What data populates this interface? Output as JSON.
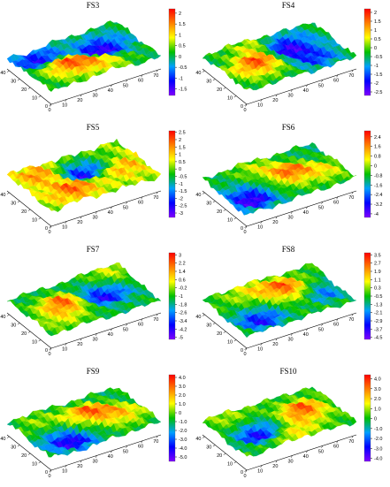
{
  "figure": {
    "panels": [
      {
        "title": "FS3",
        "colorbar_ticks": [
          "2",
          "1.5",
          "1",
          "0.5",
          "0",
          "-0.5",
          "-1",
          "-1.5"
        ],
        "cmax": 2.2,
        "cmin": -1.8
      },
      {
        "title": "FS4",
        "colorbar_ticks": [
          "2",
          "1.5",
          "1",
          "0.5",
          "0",
          "-0.5",
          "-1",
          "-1.5",
          "-2",
          "-2.5"
        ],
        "cmax": 2.2,
        "cmin": -2.7
      },
      {
        "title": "FS5",
        "colorbar_ticks": [
          "2.5",
          "2",
          "1.5",
          "1",
          "0.5",
          "0",
          "-0.5",
          "-1",
          "-1.5",
          "-2",
          "-2.5",
          "-3"
        ],
        "cmax": 2.6,
        "cmin": -3.3
      },
      {
        "title": "FS6",
        "colorbar_ticks": [
          "2.4",
          "1.6",
          "0.8",
          "0",
          "-0.8",
          "-1.6",
          "-2.4",
          "-3.2",
          "-4"
        ],
        "cmax": 2.9,
        "cmin": -4.3
      },
      {
        "title": "FS7",
        "colorbar_ticks": [
          "3",
          "2.2",
          "1.4",
          "0.6",
          "-0.2",
          "-1",
          "-1.8",
          "-2.6",
          "-3.4",
          "-4.2",
          "-5"
        ],
        "cmax": 3.2,
        "cmin": -5.2
      },
      {
        "title": "FS8",
        "colorbar_ticks": [
          "3.5",
          "2.7",
          "1.9",
          "1.1",
          "0.3",
          "-0.5",
          "-1.3",
          "-2.1",
          "-2.9",
          "-3.7",
          "-4.5"
        ],
        "cmax": 3.7,
        "cmin": -4.7
      },
      {
        "title": "FS9",
        "colorbar_ticks": [
          "4.0",
          "3.0",
          "2.0",
          "1.0",
          "0",
          "-1.0",
          "-2.0",
          "-3.0",
          "-4.0",
          "-5.0"
        ],
        "cmax": 4.3,
        "cmin": -5.5
      },
      {
        "title": "FS10",
        "colorbar_ticks": [
          "4.0",
          "3.0",
          "2.0",
          "1.0",
          "0",
          "-1.0",
          "-2.0",
          "-3.0",
          "-4.0"
        ],
        "cmax": 4.4,
        "cmin": -4.3
      }
    ],
    "axis_x_ticks": [
      "0",
      "10",
      "20",
      "30",
      "40",
      "50",
      "60",
      "70"
    ],
    "axis_y_ticks": [
      "0",
      "10",
      "20",
      "30",
      "40"
    ],
    "colormap": [
      "#ff0000",
      "#ff8000",
      "#ffff00",
      "#00c000",
      "#00a0ff",
      "#0000ff",
      "#8000ff"
    ]
  },
  "chart_data": [
    {
      "type": "heatmap",
      "title": "FS3",
      "x": [
        0,
        10,
        20,
        30,
        40,
        50,
        60,
        70
      ],
      "y": [
        0,
        10,
        20,
        30,
        40
      ],
      "zlim": [
        -1.8,
        2.2
      ],
      "colorbar": {
        "ticks": [
          2,
          1.5,
          1,
          0.5,
          0,
          -0.5,
          -1,
          -1.5
        ]
      }
    },
    {
      "type": "heatmap",
      "title": "FS4",
      "x": [
        0,
        10,
        20,
        30,
        40,
        50,
        60,
        70
      ],
      "y": [
        0,
        10,
        20,
        30,
        40
      ],
      "zlim": [
        -2.7,
        2.2
      ],
      "colorbar": {
        "ticks": [
          2,
          1.5,
          1,
          0.5,
          0,
          -0.5,
          -1,
          -1.5,
          -2,
          -2.5
        ]
      }
    },
    {
      "type": "heatmap",
      "title": "FS5",
      "x": [
        0,
        10,
        20,
        30,
        40,
        50,
        60,
        70
      ],
      "y": [
        0,
        10,
        20,
        30,
        40
      ],
      "zlim": [
        -3.3,
        2.6
      ],
      "colorbar": {
        "ticks": [
          2.5,
          2,
          1.5,
          1,
          0.5,
          0,
          -0.5,
          -1,
          -1.5,
          -2,
          -2.5,
          -3
        ]
      }
    },
    {
      "type": "heatmap",
      "title": "FS6",
      "x": [
        0,
        10,
        20,
        30,
        40,
        50,
        60,
        70
      ],
      "y": [
        0,
        10,
        20,
        30,
        40
      ],
      "zlim": [
        -4.3,
        2.9
      ],
      "colorbar": {
        "ticks": [
          2.4,
          1.6,
          0.8,
          0,
          -0.8,
          -1.6,
          -2.4,
          -3.2,
          -4
        ]
      }
    },
    {
      "type": "heatmap",
      "title": "FS7",
      "x": [
        0,
        10,
        20,
        30,
        40,
        50,
        60,
        70
      ],
      "y": [
        0,
        10,
        20,
        30,
        40
      ],
      "zlim": [
        -5.2,
        3.2
      ],
      "colorbar": {
        "ticks": [
          3,
          2.2,
          1.4,
          0.6,
          -0.2,
          -1,
          -1.8,
          -2.6,
          -3.4,
          -4.2,
          -5
        ]
      }
    },
    {
      "type": "heatmap",
      "title": "FS8",
      "x": [
        0,
        10,
        20,
        30,
        40,
        50,
        60,
        70
      ],
      "y": [
        0,
        10,
        20,
        30,
        40
      ],
      "zlim": [
        -4.7,
        3.7
      ],
      "colorbar": {
        "ticks": [
          3.5,
          2.7,
          1.9,
          1.1,
          0.3,
          -0.5,
          -1.3,
          -2.1,
          -2.9,
          -3.7,
          -4.5
        ]
      }
    },
    {
      "type": "heatmap",
      "title": "FS9",
      "x": [
        0,
        10,
        20,
        30,
        40,
        50,
        60,
        70
      ],
      "y": [
        0,
        10,
        20,
        30,
        40
      ],
      "zlim": [
        -5.5,
        4.3
      ],
      "colorbar": {
        "ticks": [
          4,
          3,
          2,
          1,
          0,
          -1,
          -2,
          -3,
          -4,
          -5
        ]
      }
    },
    {
      "type": "heatmap",
      "title": "FS10",
      "x": [
        0,
        10,
        20,
        30,
        40,
        50,
        60,
        70
      ],
      "y": [
        0,
        10,
        20,
        30,
        40
      ],
      "zlim": [
        -4.3,
        4.4
      ],
      "colorbar": {
        "ticks": [
          4,
          3,
          2,
          1,
          0,
          -1,
          -2,
          -3,
          -4
        ]
      }
    }
  ]
}
